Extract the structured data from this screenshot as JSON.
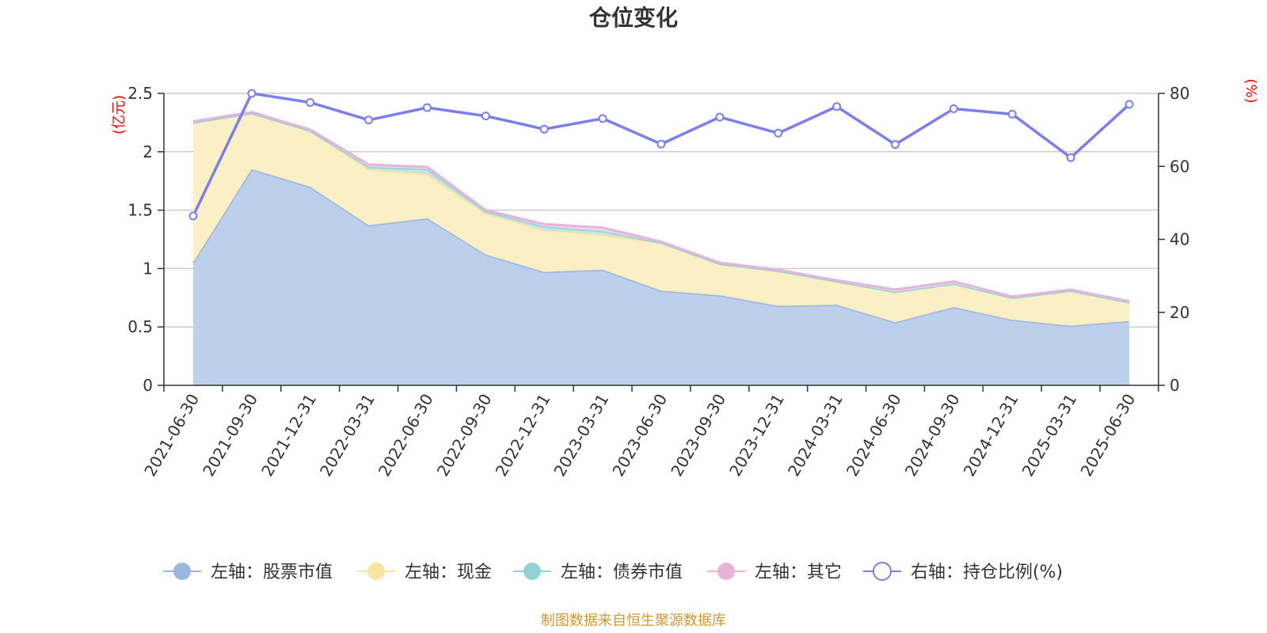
{
  "chart_data": {
    "type": "area",
    "title": "仓位变化",
    "left_axis_unit": "(亿元)",
    "right_axis_unit": "(%)",
    "categories": [
      "2021-06-30",
      "2021-09-30",
      "2021-12-31",
      "2022-03-31",
      "2022-06-30",
      "2022-09-30",
      "2022-12-31",
      "2023-03-31",
      "2023-06-30",
      "2023-09-30",
      "2023-12-31",
      "2024-03-31",
      "2024-06-30",
      "2024-09-30",
      "2024-12-31",
      "2025-03-31",
      "2025-06-30"
    ],
    "left_axis": {
      "min": 0,
      "max": 2.5,
      "ticks": [
        "0",
        "0.5",
        "1",
        "1.5",
        "2",
        "2.5"
      ]
    },
    "right_axis": {
      "min": 0,
      "max": 80,
      "ticks": [
        "0",
        "20",
        "40",
        "60",
        "80"
      ]
    },
    "grid": true,
    "legend_position": "bottom",
    "stacked": true,
    "series": [
      {
        "name": "左轴：股票市值",
        "axis": "left",
        "kind": "area",
        "color": "#9ab6e0",
        "fill": "#b8cdea",
        "values": [
          1.05,
          1.85,
          1.7,
          1.37,
          1.43,
          1.12,
          0.97,
          0.99,
          0.81,
          0.77,
          0.68,
          0.69,
          0.54,
          0.67,
          0.56,
          0.51,
          0.55
        ]
      },
      {
        "name": "左轴：现金",
        "axis": "left",
        "kind": "area",
        "color": "#f8e4a0",
        "fill": "#fbefc2",
        "values": [
          1.2,
          0.48,
          0.48,
          0.48,
          0.38,
          0.35,
          0.36,
          0.3,
          0.41,
          0.27,
          0.3,
          0.2,
          0.26,
          0.2,
          0.19,
          0.3,
          0.16
        ]
      },
      {
        "name": "左轴：债券市值",
        "axis": "left",
        "kind": "area",
        "color": "#93d2d4",
        "fill": "#bfe6e7",
        "values": [
          0,
          0,
          0,
          0.02,
          0.04,
          0.02,
          0.03,
          0.03,
          0,
          0,
          0,
          0,
          0,
          0,
          0,
          0,
          0
        ]
      },
      {
        "name": "左轴：其它",
        "axis": "left",
        "kind": "area",
        "color": "#e6b4da",
        "fill": "#f0d3ea",
        "values": [
          0.01,
          0.01,
          0.01,
          0.02,
          0.02,
          0.01,
          0.02,
          0.03,
          0.01,
          0.01,
          0.01,
          0.01,
          0.02,
          0.02,
          0.01,
          0.01,
          0.01
        ]
      },
      {
        "name": "右轴：持仓比例(%)",
        "axis": "right",
        "kind": "line",
        "color": "#7b7ef0",
        "values": [
          46.4,
          80.0,
          77.5,
          72.7,
          76.1,
          73.8,
          70.2,
          73.1,
          66.1,
          73.5,
          69.1,
          76.4,
          66.0,
          75.8,
          74.3,
          62.4,
          77.0
        ]
      }
    ],
    "source": "制图数据来自恒生聚源数据库"
  }
}
